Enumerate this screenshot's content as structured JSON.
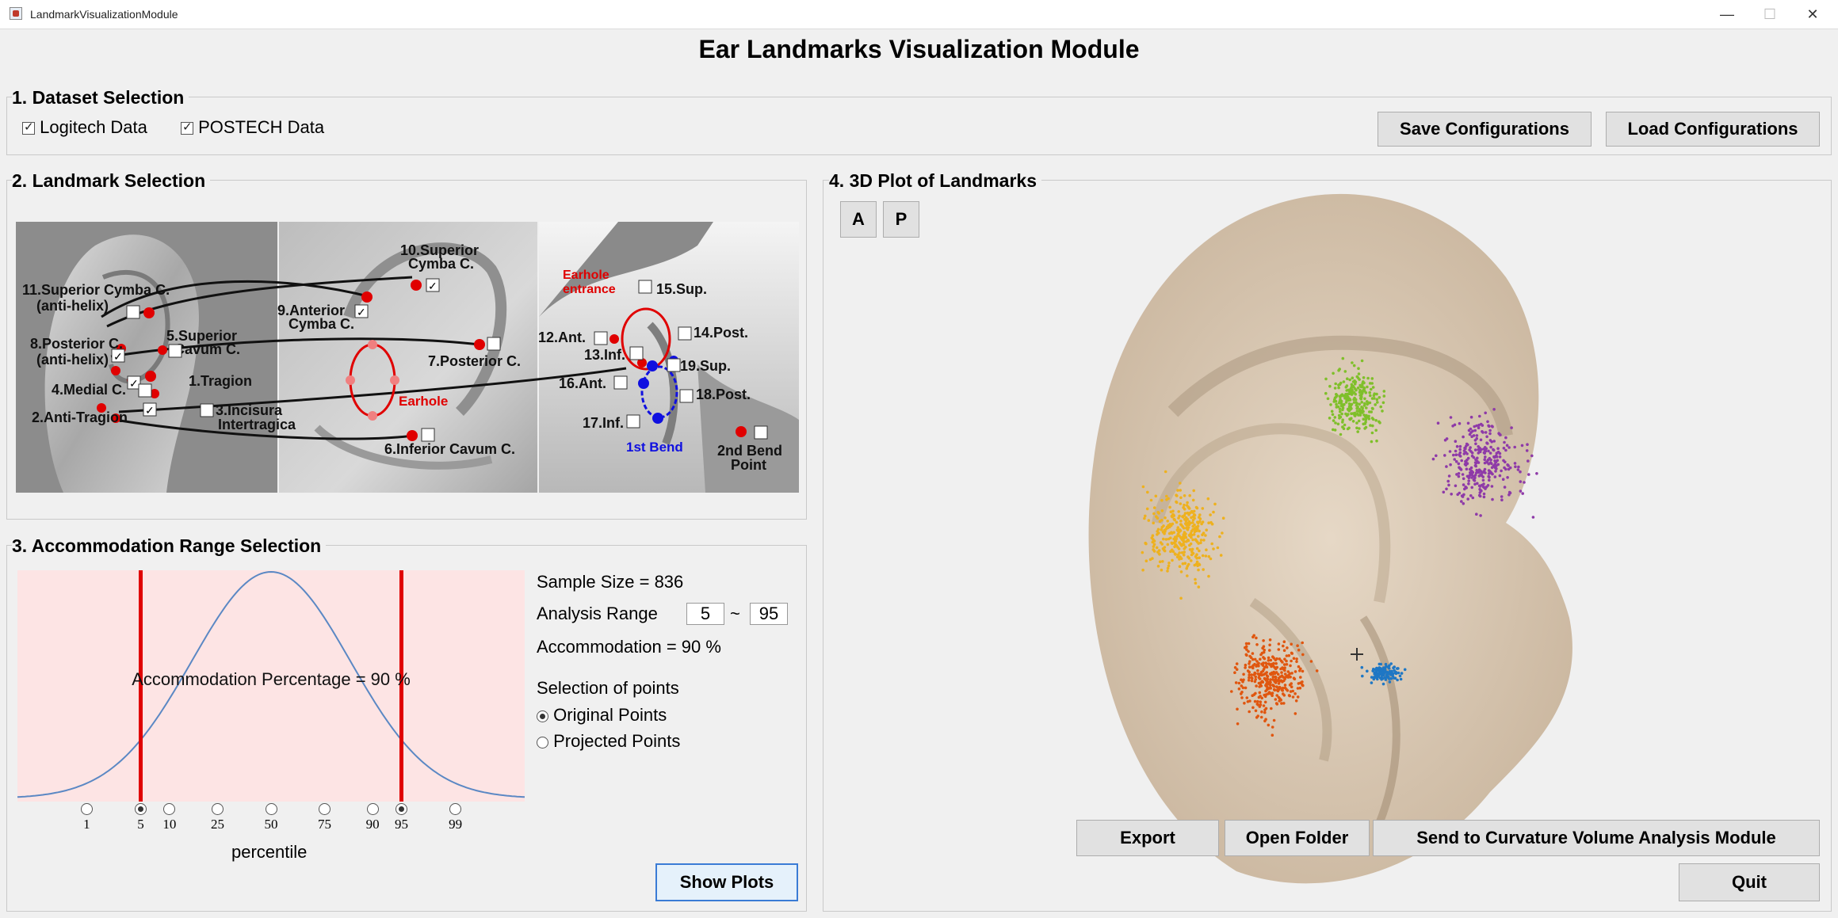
{
  "window": {
    "title": "LandmarkVisualizationModule",
    "minimize": "—",
    "maximize": "☐",
    "close": "✕"
  },
  "header": {
    "title": "Ear Landmarks Visualization Module"
  },
  "dataset": {
    "title": "1. Dataset Selection",
    "options": [
      {
        "label": "Logitech Data",
        "checked": true
      },
      {
        "label": "POSTECH Data",
        "checked": true
      }
    ],
    "save_label": "Save Configurations",
    "load_label": "Load Configurations"
  },
  "landmarks": {
    "title": "2. Landmark Selection",
    "items": [
      {
        "label": "1.Tragion",
        "checked": true
      },
      {
        "label": "2.Anti-Tragion",
        "checked": true
      },
      {
        "label": "3.Incisura",
        "label2": "Intertragica",
        "checked": false
      },
      {
        "label": "4.Medial C.",
        "checked": false
      },
      {
        "label": "5.Superior",
        "label2": "Cavum C.",
        "checked": false
      },
      {
        "label": "6.Inferior Cavum C.",
        "checked": false
      },
      {
        "label": "7.Posterior C.",
        "checked": false
      },
      {
        "label": "8.Posterior C.",
        "label2": "(anti-helix)",
        "checked": true
      },
      {
        "label": "9.Anterior",
        "label2": "Cymba C.",
        "checked": true
      },
      {
        "label": "10.Superior",
        "label2": "Cymba C.",
        "checked": true
      },
      {
        "label": "11.Superior Cymba C.",
        "label2": "(anti-helix)",
        "checked": false
      },
      {
        "label": "12.Ant.",
        "checked": false
      },
      {
        "label": "13.Inf.",
        "checked": false
      },
      {
        "label": "14.Post.",
        "checked": false
      },
      {
        "label": "15.Sup.",
        "checked": false
      },
      {
        "label": "16.Ant.",
        "checked": false
      },
      {
        "label": "17.Inf.",
        "checked": false
      },
      {
        "label": "18.Post.",
        "checked": false
      },
      {
        "label": "19.Sup.",
        "checked": false
      },
      {
        "label": "2nd Bend",
        "label2": "Point",
        "checked": false
      }
    ],
    "earhole_label": "Earhole",
    "earhole_entrance_label": "Earhole",
    "earhole_entrance_label2": "entrance",
    "first_bend_label": "1st Bend"
  },
  "accommodation": {
    "title": "3. Accommodation Range Selection",
    "curve_label": "Accommodation Percentage = 90 %",
    "xlabel": "percentile",
    "ticks": [
      {
        "label": "1",
        "selected": false
      },
      {
        "label": "5",
        "selected": true
      },
      {
        "label": "10",
        "selected": false
      },
      {
        "label": "25",
        "selected": false
      },
      {
        "label": "50",
        "selected": false
      },
      {
        "label": "75",
        "selected": false
      },
      {
        "label": "90",
        "selected": false
      },
      {
        "label": "95",
        "selected": true
      },
      {
        "label": "99",
        "selected": false
      }
    ],
    "sample_size": "Sample Size = 836",
    "range_label": "Analysis Range",
    "range_low": "5",
    "range_sep": "~",
    "range_high": "95",
    "accommodation_text": "Accommodation = 90 %",
    "selection_title": "Selection of points",
    "options": [
      {
        "label": "Original Points",
        "selected": true
      },
      {
        "label": "Projected Points",
        "selected": false
      }
    ],
    "show_plots_label": "Show Plots",
    "lower_percentile": 5,
    "upper_percentile": 95
  },
  "plot3d": {
    "title": "4. 3D Plot of Landmarks",
    "btn_a": "A",
    "btn_p": "P",
    "colors": {
      "green": "#7fbf2a",
      "purple": "#8e3aa8",
      "yellow": "#eeb11e",
      "orange": "#e0560f",
      "blue": "#1f77c4"
    },
    "export_label": "Export",
    "open_folder_label": "Open Folder",
    "send_label": "Send to Curvature Volume Analysis Module",
    "quit_label": "Quit"
  }
}
